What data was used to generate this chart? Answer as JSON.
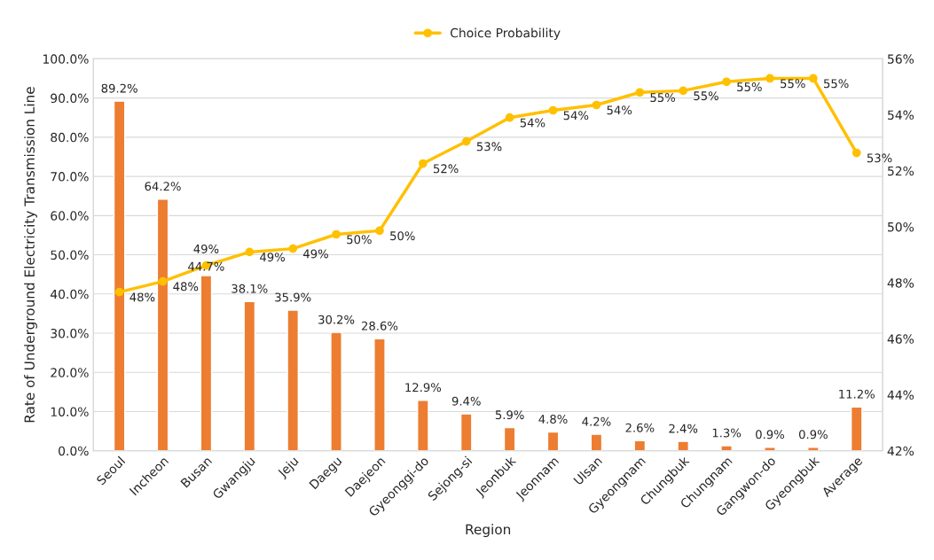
{
  "chart_data": {
    "type": "bar",
    "xlabel": "Region",
    "ylabel": "Rate of Underground Electricity Transmission Line",
    "categories": [
      "Seoul",
      "Incheon",
      "Busan",
      "Gwangju",
      "Jeju",
      "Daegu",
      "Daejeon",
      "Gyeonggi-do",
      "Sejong-si",
      "Jeonbuk",
      "Jeonnam",
      "Ulsan",
      "Gyeongnam",
      "Chungbuk",
      "Chungnam",
      "Gangwon-do",
      "Gyeongbuk",
      "Average"
    ],
    "series": [
      {
        "color": "#ed7d31",
        "values": [
          89.2,
          64.2,
          44.7,
          38.1,
          35.9,
          30.2,
          28.6,
          12.9,
          9.4,
          5.9,
          4.8,
          4.2,
          2.6,
          2.4,
          1.3,
          0.9,
          0.9,
          11.2
        ],
        "value_labels": [
          "89.2%",
          "64.2%",
          "44.7%",
          "38.1%",
          "35.9%",
          "30.2%",
          "28.6%",
          "12.9%",
          "9.4%",
          "5.9%",
          "4.8%",
          "4.2%",
          "2.6%",
          "2.4%",
          "1.3%",
          "0.9%",
          "0.9%",
          "11.2%"
        ]
      },
      {
        "type": "line",
        "axis": "y2",
        "name": "Choice Probability",
        "color": "#ffc000",
        "marker": "circle",
        "values": [
          47.67,
          48.05,
          48.62,
          49.1,
          49.22,
          49.73,
          49.86,
          52.26,
          53.05,
          53.9,
          54.16,
          54.35,
          54.8,
          54.86,
          55.18,
          55.3,
          55.3,
          52.64
        ],
        "value_labels": [
          "48%",
          "48%",
          "49%",
          "49%",
          "49%",
          "50%",
          "50%",
          "52%",
          "53%",
          "54%",
          "54%",
          "54%",
          "55%",
          "55%",
          "55%",
          "55%",
          "55%",
          "53%"
        ]
      }
    ],
    "ylim": [
      0,
      100
    ],
    "yticks": [
      {
        "value": 0,
        "label": "0.0%"
      },
      {
        "value": 10,
        "label": "10.0%"
      },
      {
        "value": 20,
        "label": "20.0%"
      },
      {
        "value": 30,
        "label": "30.0%"
      },
      {
        "value": 40,
        "label": "40.0%"
      },
      {
        "value": 50,
        "label": "50.0%"
      },
      {
        "value": 60,
        "label": "60.0%"
      },
      {
        "value": 70,
        "label": "70.0%"
      },
      {
        "value": 80,
        "label": "80.0%"
      },
      {
        "value": 90,
        "label": "90.0%"
      },
      {
        "value": 100,
        "label": "100.0%"
      }
    ],
    "y2lim": [
      42,
      56
    ],
    "y2ticks": [
      {
        "value": 42,
        "label": "42%"
      },
      {
        "value": 44,
        "label": "44%"
      },
      {
        "value": 46,
        "label": "46%"
      },
      {
        "value": 48,
        "label": "48%"
      },
      {
        "value": 50,
        "label": "50%"
      },
      {
        "value": 52,
        "label": "52%"
      },
      {
        "value": 54,
        "label": "54%"
      },
      {
        "value": 56,
        "label": "56%"
      }
    ],
    "grid": "y",
    "legend": "top"
  }
}
